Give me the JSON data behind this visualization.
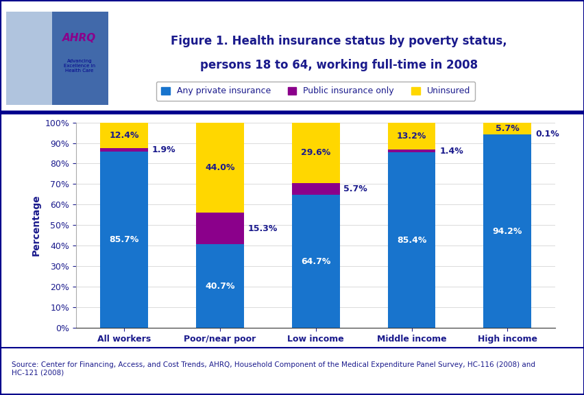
{
  "categories": [
    "All workers",
    "Poor/near poor",
    "Low income",
    "Middle income",
    "High income"
  ],
  "private_insurance": [
    85.7,
    40.7,
    64.7,
    85.4,
    94.2
  ],
  "public_insurance": [
    1.9,
    15.3,
    5.7,
    1.4,
    0.1
  ],
  "uninsured": [
    12.4,
    44.0,
    29.6,
    13.2,
    5.7
  ],
  "colors": {
    "private": "#1874CD",
    "public": "#8B008B",
    "uninsured": "#FFD700"
  },
  "title_line1": "Figure 1. Health insurance status by poverty status,",
  "title_line2": "persons 18 to 64, working full-time in 2008",
  "ylabel": "Percentage",
  "source_text": "Source: Center for Financing, Access, and Cost Trends, AHRQ, Household Component of the Medical Expenditure Panel Survey, HC-116 (2008) and\nHC-121 (2008)",
  "legend_labels": [
    "Any private insurance",
    "Public insurance only",
    "Uninsured"
  ],
  "title_color": "#1A1A8C",
  "axis_label_color": "#1A1A8C",
  "tick_label_color": "#1A1A8C",
  "bar_label_color_private": "#FFFFFF",
  "bar_label_color_other": "#1A1A8C",
  "ylim": [
    0,
    100
  ],
  "yticks": [
    0,
    10,
    20,
    30,
    40,
    50,
    60,
    70,
    80,
    90,
    100
  ],
  "ytick_labels": [
    "0%",
    "10%",
    "20%",
    "30%",
    "40%",
    "50%",
    "60%",
    "70%",
    "80%",
    "90%",
    "100%"
  ],
  "header_bg": "#FFFFFF",
  "border_color": "#00008B",
  "thick_line_color": "#00008B",
  "logo_bg": "#4169E1"
}
